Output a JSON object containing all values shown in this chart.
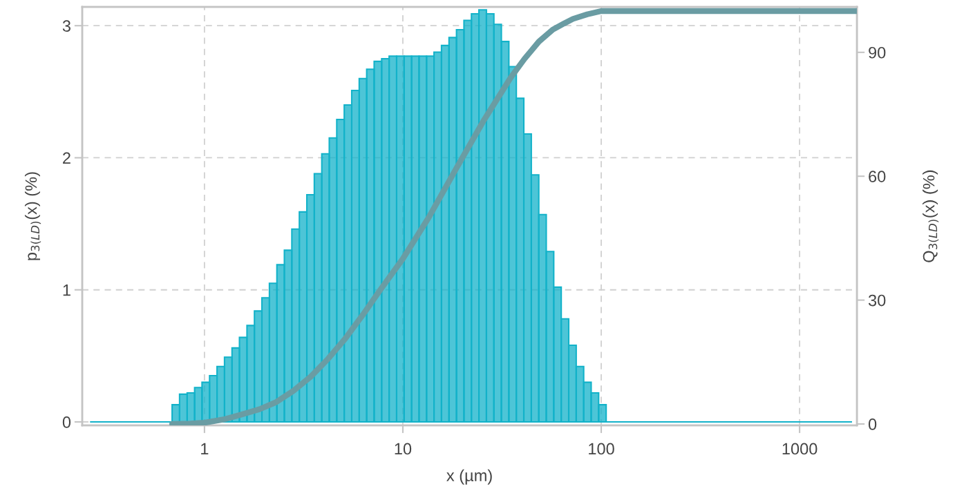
{
  "chart_data": {
    "type": "histogram",
    "xlabel": "x (µm)",
    "ylabel": "p$_{3(LD)}$(x) (%)",
    "y2label": "Q$_{3(LD)}$(x) (%)",
    "log": "x",
    "grid": true,
    "xlim": [
      0.242,
      1945
    ],
    "xticks": [
      1,
      10,
      100,
      1000
    ],
    "ylim": [
      -0.026,
      3.142
    ],
    "yticks": [
      0,
      1,
      2,
      3
    ],
    "y2lim": [
      -0.33,
      101
    ],
    "y2ticks": [
      0,
      30,
      60,
      90
    ],
    "series": [
      {
        "color": "#12b2c9",
        "bins": [
          0.265,
          0.687,
          0.749,
          0.818,
          0.892,
          0.972,
          1.061,
          1.157,
          1.262,
          1.377,
          1.501,
          1.638,
          1.786,
          1.948,
          2.125,
          2.318,
          2.528,
          2.757,
          3.008,
          3.281,
          3.578,
          3.903,
          4.257,
          4.643,
          5.065,
          5.524,
          6.026,
          6.572,
          7.168,
          7.82,
          8.529,
          9.303,
          10.15,
          11.07,
          12.07,
          13.17,
          14.36,
          15.66,
          17.09,
          18.64,
          20.33,
          22.17,
          24.18,
          26.38,
          28.77,
          31.38,
          34.23,
          37.33,
          40.72,
          44.42,
          48.45,
          52.84,
          57.64,
          62.87,
          68.58,
          74.8,
          81.59,
          88.99,
          97.05,
          105.9,
          1837
        ],
        "values": [
          0,
          0.13,
          0.21,
          0.22,
          0.26,
          0.3,
          0.35,
          0.42,
          0.49,
          0.56,
          0.64,
          0.73,
          0.84,
          0.94,
          1.05,
          1.19,
          1.3,
          1.46,
          1.59,
          1.72,
          1.88,
          2.03,
          2.15,
          2.29,
          2.4,
          2.51,
          2.6,
          2.67,
          2.73,
          2.75,
          2.77,
          2.77,
          2.77,
          2.77,
          2.77,
          2.77,
          2.8,
          2.85,
          2.91,
          2.97,
          3.04,
          3.09,
          3.12,
          3.09,
          3.01,
          2.88,
          2.69,
          2.45,
          2.18,
          1.87,
          1.57,
          1.29,
          1.02,
          0.78,
          0.58,
          0.42,
          0.3,
          0.22,
          0.13,
          0
        ]
      },
      {
        "type": "line",
        "axis": "y2",
        "color": "#6a9ca3",
        "x": [
          0.687,
          0.85,
          1,
          1.25,
          1.54,
          1.9,
          2.3,
          2.8,
          3.44,
          4.2,
          5.13,
          6.3,
          7.67,
          10,
          13.5,
          18.5,
          25.5,
          35,
          41,
          48.5,
          57,
          65,
          72,
          85,
          100,
          1945
        ],
        "values": [
          0,
          0.1,
          0.3,
          1.1,
          2.3,
          3.6,
          5.3,
          8,
          11.5,
          15.8,
          20.7,
          26.5,
          32.4,
          40,
          50,
          61.7,
          73.4,
          83.9,
          88.4,
          92.6,
          95.5,
          97,
          98.1,
          99.2,
          100,
          100
        ]
      }
    ]
  }
}
